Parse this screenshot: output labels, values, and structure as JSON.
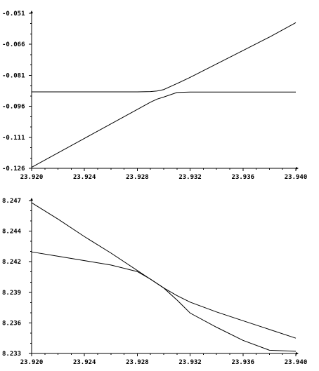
{
  "chart_data": [
    {
      "type": "line",
      "title": "",
      "xlabel": "",
      "ylabel": "",
      "xlim": [
        23.92,
        23.94
      ],
      "ylim": [
        -0.126,
        -0.051
      ],
      "x_ticks": [
        "23.920",
        "23.924",
        "23.928",
        "23.932",
        "23.936",
        "23.940"
      ],
      "y_ticks": [
        "-0.051",
        "-0.066",
        "-0.081",
        "-0.096",
        "-0.111",
        "-0.126"
      ],
      "grid": false,
      "line_color": "#000000",
      "series": [
        {
          "x": [
            23.92,
            23.922,
            23.924,
            23.926,
            23.928,
            23.929,
            23.9295,
            23.93,
            23.931,
            23.932,
            23.934,
            23.936,
            23.938,
            23.94
          ],
          "values": [
            -0.089,
            -0.089,
            -0.089,
            -0.089,
            -0.089,
            -0.0889,
            -0.0886,
            -0.0879,
            -0.085,
            -0.082,
            -0.0755,
            -0.069,
            -0.0625,
            -0.0555
          ]
        },
        {
          "x": [
            23.92,
            23.922,
            23.924,
            23.926,
            23.928,
            23.929,
            23.9295,
            23.93,
            23.931,
            23.932,
            23.934,
            23.936,
            23.938,
            23.94
          ],
          "values": [
            -0.1255,
            -0.1185,
            -0.1115,
            -0.1045,
            -0.0975,
            -0.094,
            -0.0925,
            -0.0915,
            -0.0893,
            -0.0891,
            -0.0891,
            -0.0891,
            -0.0891,
            -0.0891
          ]
        }
      ]
    },
    {
      "type": "line",
      "title": "",
      "xlabel": "",
      "ylabel": "",
      "xlim": [
        23.92,
        23.94
      ],
      "ylim": [
        8.233,
        8.247
      ],
      "x_ticks": [
        "23.920",
        "23.924",
        "23.928",
        "23.932",
        "23.936",
        "23.940"
      ],
      "y_ticks": [
        "8.247",
        "8.244",
        "8.242",
        "8.239",
        "8.236",
        "8.233"
      ],
      "grid": false,
      "line_color": "#000000",
      "series": [
        {
          "x": [
            23.92,
            23.922,
            23.924,
            23.926,
            23.928,
            23.929,
            23.93,
            23.931,
            23.932,
            23.934,
            23.936,
            23.938,
            23.94
          ],
          "values": [
            8.2468,
            8.2453,
            8.2437,
            8.2422,
            8.2406,
            8.2398,
            8.239,
            8.2383,
            8.2377,
            8.2368,
            8.236,
            8.2352,
            8.2344
          ]
        },
        {
          "x": [
            23.92,
            23.922,
            23.924,
            23.926,
            23.928,
            23.929,
            23.93,
            23.931,
            23.932,
            23.934,
            23.936,
            23.938,
            23.94
          ],
          "values": [
            8.2423,
            8.2419,
            8.2415,
            8.2411,
            8.2405,
            8.2398,
            8.239,
            8.2379,
            8.2367,
            8.2354,
            8.2342,
            8.2333,
            8.2332
          ]
        }
      ]
    }
  ]
}
